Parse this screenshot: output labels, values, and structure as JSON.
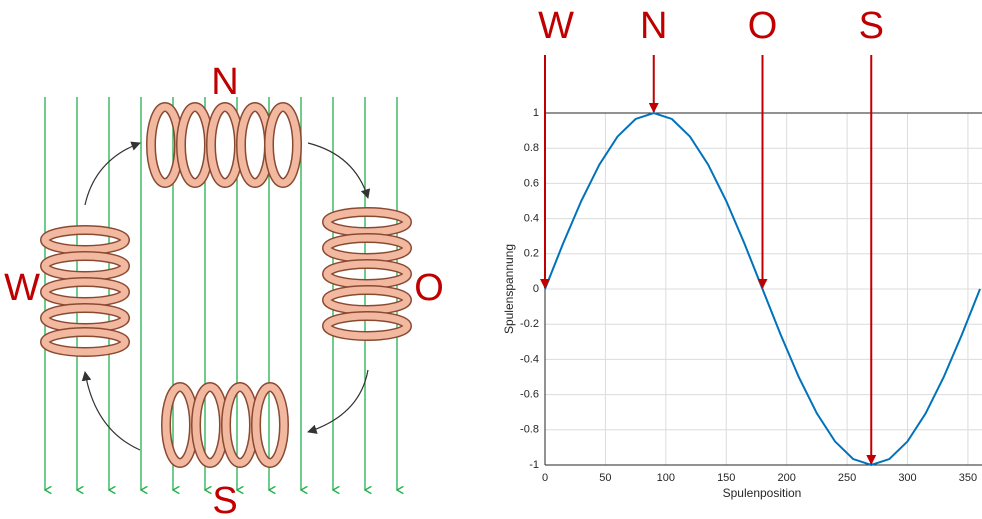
{
  "diagram": {
    "labels": {
      "top": "N",
      "left": "W",
      "right": "O",
      "bottom": "S"
    }
  },
  "chart_data": {
    "type": "line",
    "xlabel": "Spulenposition",
    "ylabel": "Spulenspannung",
    "x": [
      0,
      15,
      30,
      45,
      60,
      75,
      90,
      105,
      120,
      135,
      150,
      165,
      180,
      195,
      210,
      225,
      240,
      255,
      270,
      285,
      300,
      315,
      330,
      345,
      360
    ],
    "values": [
      0,
      0.259,
      0.5,
      0.707,
      0.866,
      0.966,
      1,
      0.966,
      0.866,
      0.707,
      0.5,
      0.259,
      0,
      -0.259,
      -0.5,
      -0.707,
      -0.866,
      -0.966,
      -1,
      -0.966,
      -0.866,
      -0.707,
      -0.5,
      -0.259,
      0
    ],
    "color": "#0072bd",
    "xlim": [
      0,
      360
    ],
    "ylim": [
      -1,
      1
    ],
    "xticks": [
      0,
      50,
      100,
      150,
      200,
      250,
      300,
      350
    ],
    "yticks": [
      -1,
      -0.8,
      -0.6,
      -0.4,
      -0.2,
      0,
      0.2,
      0.4,
      0.6,
      0.8,
      1
    ],
    "grid": true,
    "annotations": [
      {
        "text": "W",
        "x": 0,
        "y": 0
      },
      {
        "text": "N",
        "x": 90,
        "y": 1
      },
      {
        "text": "O",
        "x": 180,
        "y": 0
      },
      {
        "text": "S",
        "x": 270,
        "y": -1
      }
    ]
  }
}
